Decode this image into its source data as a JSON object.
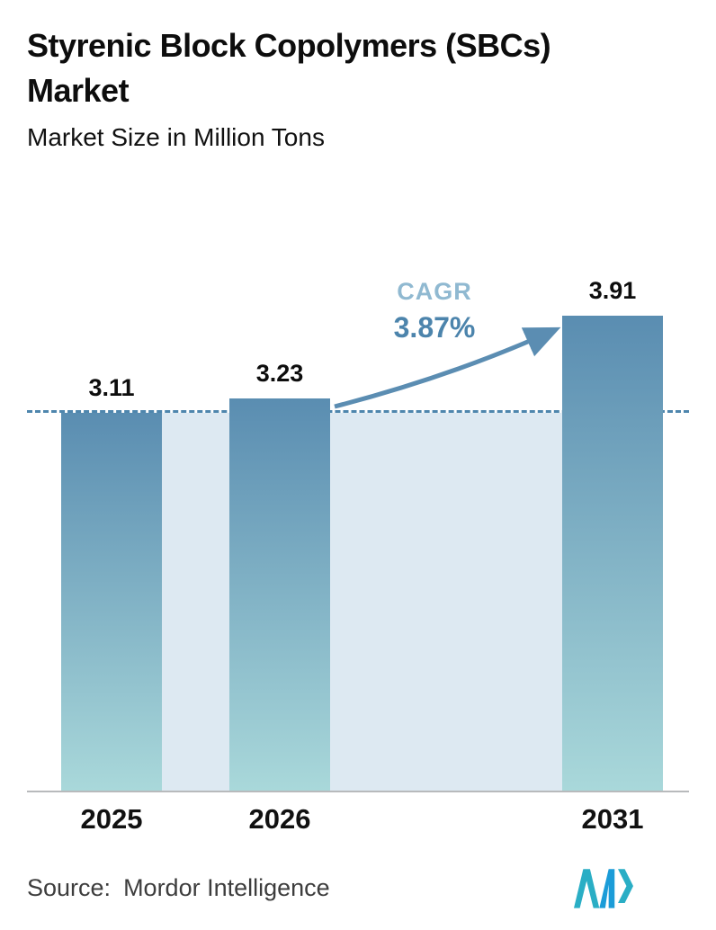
{
  "header": {
    "title_line1": "Styrenic Block Copolymers (SBCs)",
    "title_line2": "Market",
    "subtitle": "Market Size in Million Tons"
  },
  "chart_data": {
    "type": "bar",
    "title": "Styrenic Block Copolymers (SBCs) Market",
    "subtitle": "Market Size in Million Tons",
    "unit": "Million Tons",
    "categories": [
      "2025",
      "2026",
      "2031"
    ],
    "values": [
      3.11,
      3.23,
      3.91
    ],
    "value_labels": [
      "3.11",
      "3.23",
      "3.91"
    ],
    "ylim": [
      0,
      4.44
    ],
    "grid": false,
    "legend": false,
    "dashed_line_at": 3.11,
    "annotation": {
      "label": "CAGR",
      "value": "3.87%"
    },
    "colors": {
      "bar_top": "#5a8db1",
      "bar_bottom": "#a9d8da",
      "band": "#dde9f2",
      "dashed": "#4e86ad",
      "accent": "#5b8db2",
      "baseline": "#b8babc"
    }
  },
  "footer": {
    "source_label": "Source:",
    "source_value": "Mordor Intelligence",
    "logo": "mordor-intelligence-logo",
    "logo_colors": {
      "primary": "#2aaec5",
      "secondary": "#1b9cd8"
    }
  }
}
